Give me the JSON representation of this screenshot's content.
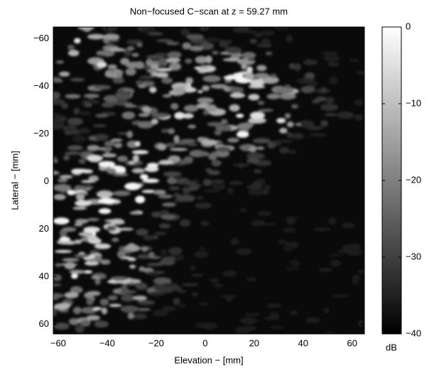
{
  "chart_data": {
    "type": "image",
    "title": "Non−focused C−scan at z = 59.27 mm",
    "x_label": "Elevation − [mm]",
    "y_label": "Lateral − [mm]",
    "colorbar_label": "dB",
    "colormap": "gray",
    "xlim": [
      -62,
      65
    ],
    "ylim": [
      -65,
      64
    ],
    "xticks": [
      {
        "value": -60,
        "label": "−60"
      },
      {
        "value": -40,
        "label": "−40"
      },
      {
        "value": -20,
        "label": "−20"
      },
      0,
      20,
      40,
      60
    ],
    "yticks": [
      {
        "value": -60,
        "label": "−60"
      },
      {
        "value": -40,
        "label": "−40"
      },
      {
        "value": -20,
        "label": "−20"
      },
      0,
      20,
      40,
      60
    ],
    "clim": [
      -40,
      0
    ],
    "cticks": [
      0,
      {
        "value": -10,
        "label": "−10"
      },
      {
        "value": -20,
        "label": "−20"
      },
      {
        "value": -30,
        "label": "−30"
      },
      {
        "value": -40,
        "label": "−40"
      }
    ]
  }
}
